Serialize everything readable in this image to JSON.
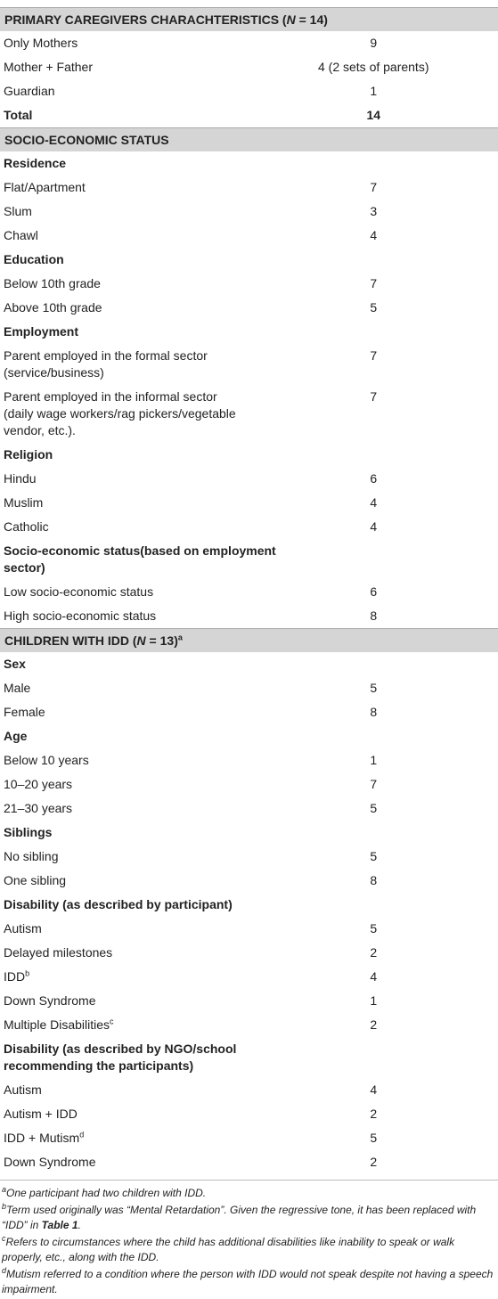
{
  "sections": [
    {
      "title": [
        "PRIMARY CAREGIVERS CHARACHTERISTICS (",
        "N",
        " = 14)"
      ],
      "groups": [
        {
          "rows": [
            {
              "label": "Only Mothers",
              "value": 9
            },
            {
              "label": "Mother + Father",
              "value": "4 (2 sets of parents)"
            },
            {
              "label": "Guardian",
              "value": 1
            }
          ]
        }
      ],
      "total": {
        "label": "Total",
        "value": 14
      }
    },
    {
      "title": [
        "SOCIO-ECONOMIC STATUS"
      ],
      "groups": [
        {
          "heading": "Residence",
          "rows": [
            {
              "label": "Flat/Apartment",
              "value": 7
            },
            {
              "label": "Slum",
              "value": 3
            },
            {
              "label": "Chawl",
              "value": 4
            }
          ]
        },
        {
          "heading": "Education",
          "rows": [
            {
              "label": "Below 10th grade",
              "value": 7
            },
            {
              "label": "Above 10th grade",
              "value": 5
            }
          ]
        },
        {
          "heading": "Employment",
          "rows": [
            {
              "label": "Parent employed in the formal sector (service/business)",
              "value": 7
            },
            {
              "label": "Parent employed in the informal sector (daily wage workers/rag pickers/vegetable vendor, etc.).",
              "value": 7
            }
          ]
        },
        {
          "heading": "Religion",
          "rows": [
            {
              "label": "Hindu",
              "value": 6
            },
            {
              "label": "Muslim",
              "value": 4
            },
            {
              "label": "Catholic",
              "value": 4
            }
          ]
        },
        {
          "heading": "Socio-economic status(based on employment sector)",
          "rows": [
            {
              "label": "Low socio-economic status",
              "value": 6
            },
            {
              "label": "High socio-economic status",
              "value": 8
            }
          ]
        }
      ]
    },
    {
      "title": [
        "CHILDREN WITH IDD (",
        "N",
        " = 13)"
      ],
      "note": "a",
      "groups": [
        {
          "heading": "Sex",
          "rows": [
            {
              "label": "Male",
              "value": 5
            },
            {
              "label": "Female",
              "value": 8
            }
          ]
        },
        {
          "heading": "Age",
          "rows": [
            {
              "label": "Below 10 years",
              "value": 1
            },
            {
              "label": "10–20 years",
              "value": 7
            },
            {
              "label": "21–30 years",
              "value": 5
            }
          ]
        },
        {
          "heading": "Siblings",
          "rows": [
            {
              "label": "No sibling",
              "value": 5
            },
            {
              "label": "One sibling",
              "value": 8
            }
          ]
        },
        {
          "heading": "Disability (as described by participant)",
          "rows": [
            {
              "label": "Autism",
              "value": 5
            },
            {
              "label": "Delayed milestones",
              "value": 2
            },
            {
              "label": "IDD",
              "note": "b",
              "value": 4
            },
            {
              "label": "Down Syndrome",
              "value": 1
            },
            {
              "label": "Multiple Disabilities",
              "note": "c",
              "value": 2
            }
          ]
        },
        {
          "heading": "Disability (as described by NGO/school recommending the participants)",
          "rows": [
            {
              "label": "Autism",
              "value": 4
            },
            {
              "label": "Autism + IDD",
              "value": 2
            },
            {
              "label": "IDD + Mutism",
              "note": "d",
              "value": 5
            },
            {
              "label": "Down Syndrome",
              "value": 2
            }
          ]
        }
      ]
    }
  ],
  "footnotes": [
    {
      "mark": "a",
      "text": "One participant had two children with IDD."
    },
    {
      "mark": "b",
      "text": "Term used originally was “Mental Retardation”. Given the regressive tone, it has been replaced with “IDD” in ",
      "ref": "Table 1",
      "end": "."
    },
    {
      "mark": "c",
      "text": "Refers to circumstances where the child has additional disabilities like inability to speak or walk properly, etc., along with the IDD."
    },
    {
      "mark": "d",
      "text": "Mutism referred to a condition where the person with IDD would not speak despite not having a speech impairment."
    }
  ]
}
